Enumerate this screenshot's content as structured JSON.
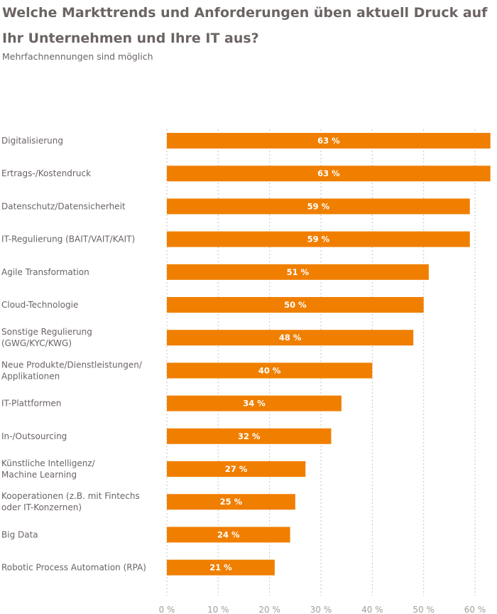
{
  "title": "Welche Markttrends und Anforderungen üben aktuell Druck auf Ihr Unternehmen und Ihre IT aus?",
  "subtitle": "Mehrfachnennungen sind möglich",
  "colors": {
    "bar": "#f07f00",
    "text": "#6b6463",
    "grid": "#c8c2bf",
    "tick": "#a39b98"
  },
  "chart_data": {
    "type": "bar",
    "orientation": "horizontal",
    "categories": [
      [
        "Digitalisierung"
      ],
      [
        "Ertrags-/Kostendruck"
      ],
      [
        "Datenschutz/Datensicherheit"
      ],
      [
        "IT-Regulierung (BAIT/VAIT/KAIT)"
      ],
      [
        "Agile Transformation"
      ],
      [
        "Cloud-Technologie"
      ],
      [
        "Sonstige Regulierung",
        "(GWG/KYC/KWG)"
      ],
      [
        "Neue Produkte/Dienstleistungen/",
        "Applikationen"
      ],
      [
        "IT-Plattformen"
      ],
      [
        "In-/Outsourcing"
      ],
      [
        "Künstliche Intelligenz/",
        "Machine Learning"
      ],
      [
        "Kooperationen (z.B. mit Fintechs",
        "oder IT-Konzernen)"
      ],
      [
        "Big Data"
      ],
      [
        "Robotic Process Automation (RPA)"
      ]
    ],
    "values": [
      63,
      63,
      59,
      59,
      51,
      50,
      48,
      40,
      34,
      32,
      27,
      25,
      24,
      21
    ],
    "value_labels": [
      "63 %",
      "63 %",
      "59 %",
      "59 %",
      "51 %",
      "50 %",
      "48 %",
      "40 %",
      "34 %",
      "32 %",
      "27 %",
      "25 %",
      "24 %",
      "21 %"
    ],
    "xticks": [
      0,
      10,
      20,
      30,
      40,
      50,
      60
    ],
    "xtick_labels": [
      "0 %",
      "10 %",
      "20 %",
      "30 %",
      "40 %",
      "50 %",
      "60 %"
    ],
    "xlim": [
      0,
      64
    ],
    "grid": true
  }
}
